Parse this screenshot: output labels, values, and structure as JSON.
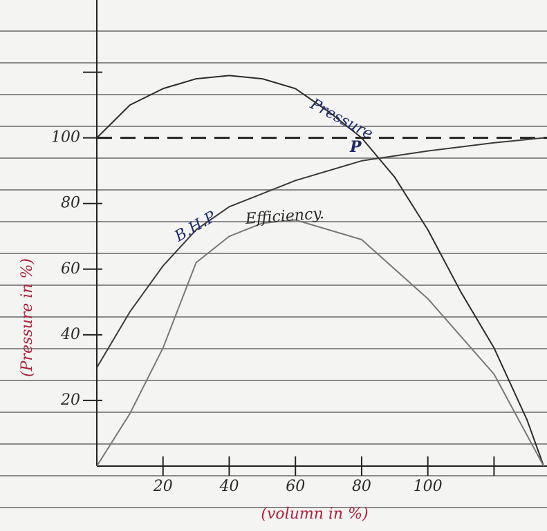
{
  "chart_data": {
    "type": "line",
    "x_label": "(volumn in %)",
    "y_label": "(Pressure in %)",
    "xlim": [
      0,
      136
    ],
    "ylim": [
      0,
      142
    ],
    "xticks": [
      20,
      40,
      60,
      80,
      100,
      {
        "value": 120,
        "label": null
      }
    ],
    "yticks": [
      20,
      40,
      60,
      80,
      100,
      {
        "value": 120,
        "label": null
      }
    ],
    "reference_line": {
      "value": 100,
      "style": "dashed"
    },
    "series": [
      {
        "name": "Pressure",
        "color": "#2b2b2b",
        "x": [
          0,
          10,
          20,
          30,
          40,
          50,
          60,
          70,
          80,
          90,
          100,
          110,
          120,
          130,
          135
        ],
        "values": [
          100,
          110,
          115,
          118,
          119,
          118,
          115,
          108,
          100,
          88,
          72,
          53,
          36,
          14,
          0
        ]
      },
      {
        "name": "B.H.P",
        "color": "#3a3a3a",
        "x": [
          0,
          10,
          20,
          30,
          40,
          60,
          80,
          100,
          120,
          135
        ],
        "values": [
          30,
          47,
          61,
          72,
          79,
          87,
          93,
          96,
          98.5,
          100
        ]
      },
      {
        "name": "Efficiency.",
        "color": "#777777",
        "x": [
          0,
          10,
          20,
          30,
          40,
          50,
          60,
          80,
          100,
          120,
          135
        ],
        "values": [
          0,
          16,
          36,
          62,
          70,
          74,
          75,
          69,
          51,
          28,
          0
        ]
      }
    ],
    "annotations": [
      "P"
    ]
  }
}
